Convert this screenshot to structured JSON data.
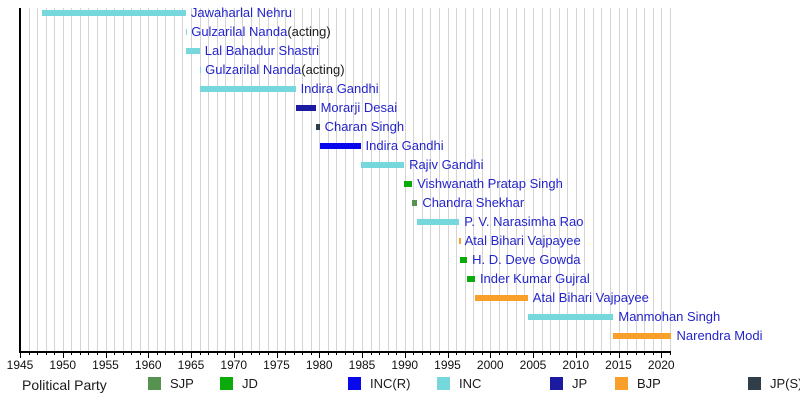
{
  "chart_data": {
    "type": "bar",
    "subtype": "gantt-timeline",
    "description": "Terms of Prime Ministers of India shown as horizontal time bars colored by political party",
    "x_axis": {
      "min": 1945,
      "max": 2021.2,
      "minor_tick_interval": 1,
      "major_tick_interval": 5,
      "tick_labels": [
        "1945",
        "1950",
        "1955",
        "1960",
        "1965",
        "1970",
        "1975",
        "1980",
        "1985",
        "1990",
        "1995",
        "2000",
        "2005",
        "2010",
        "2015",
        "2020"
      ]
    },
    "grid": true,
    "legend_position": "bottom",
    "parties": {
      "SJP": "#579251",
      "JD": "#0BAB0B",
      "INC(R)": "#0808EC",
      "INC": "#76D7DC",
      "JP": "#1B1BA1",
      "BJP": "#F9A02B",
      "JP(S)": "#2F3E48"
    },
    "bars": [
      {
        "name": "Jawaharlal Nehru",
        "suffix": "",
        "party": "INC",
        "start": 1947.62,
        "end": 1964.4
      },
      {
        "name": "Gulzarilal Nanda",
        "suffix": "(acting)",
        "party": "INC",
        "start": 1964.4,
        "end": 1964.44
      },
      {
        "name": "Lal Bahadur Shastri",
        "suffix": "",
        "party": "INC",
        "start": 1964.44,
        "end": 1966.03
      },
      {
        "name": "Gulzarilal Nanda",
        "suffix": "(acting)",
        "party": "INC",
        "start": 1966.03,
        "end": 1966.07
      },
      {
        "name": "Indira Gandhi",
        "suffix": "",
        "party": "INC",
        "start": 1966.07,
        "end": 1977.23
      },
      {
        "name": "Morarji Desai",
        "suffix": "",
        "party": "JP",
        "start": 1977.23,
        "end": 1979.57
      },
      {
        "name": "Charan Singh",
        "suffix": "",
        "party": "JP(S)",
        "start": 1979.57,
        "end": 1980.04
      },
      {
        "name": "Indira Gandhi",
        "suffix": "",
        "party": "INC(R)",
        "start": 1980.04,
        "end": 1984.83
      },
      {
        "name": "Rajiv Gandhi",
        "suffix": "",
        "party": "INC",
        "start": 1984.83,
        "end": 1989.92
      },
      {
        "name": "Vishwanath Pratap Singh",
        "suffix": "",
        "party": "JD",
        "start": 1989.92,
        "end": 1990.86
      },
      {
        "name": "Chandra Shekhar",
        "suffix": "",
        "party": "SJP",
        "start": 1990.86,
        "end": 1991.47
      },
      {
        "name": "P. V. Narasimha Rao",
        "suffix": "",
        "party": "INC",
        "start": 1991.47,
        "end": 1996.37
      },
      {
        "name": "Atal Bihari Vajpayee",
        "suffix": "",
        "party": "BJP",
        "start": 1996.37,
        "end": 1996.42
      },
      {
        "name": "H. D. Deve Gowda",
        "suffix": "",
        "party": "JD",
        "start": 1996.42,
        "end": 1997.3
      },
      {
        "name": "Inder Kumar Gujral",
        "suffix": "",
        "party": "JD",
        "start": 1997.3,
        "end": 1998.21
      },
      {
        "name": "Atal Bihari Vajpayee",
        "suffix": "",
        "party": "BJP",
        "start": 1998.21,
        "end": 2004.39
      },
      {
        "name": "Manmohan Singh",
        "suffix": "",
        "party": "INC",
        "start": 2004.39,
        "end": 2014.4
      },
      {
        "name": "Narendra Modi",
        "suffix": "",
        "party": "BJP",
        "start": 2014.4,
        "end": 2021.2
      }
    ]
  },
  "legend": {
    "title": "Political Party",
    "items": [
      {
        "label": "SJP",
        "color": "#579251"
      },
      {
        "label": "JD",
        "color": "#0BAB0B"
      },
      {
        "label": "INC(R)",
        "color": "#0808EC"
      },
      {
        "label": "INC",
        "color": "#76D7DC"
      },
      {
        "label": "JP",
        "color": "#1B1BA1"
      },
      {
        "label": "BJP",
        "color": "#F9A02B"
      },
      {
        "label": "JP(S)",
        "color": "#2F3E48"
      }
    ]
  },
  "colors": {
    "label_link": "#2424CB",
    "label_plain": "#1A1A1A",
    "grid": "#D4D4D4",
    "axis": "#000000",
    "tick_text": "#111111"
  }
}
